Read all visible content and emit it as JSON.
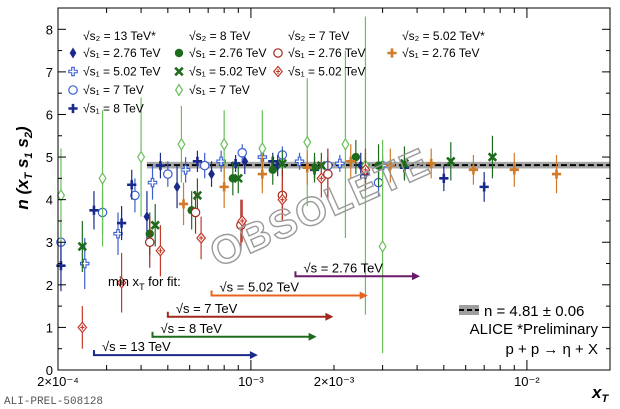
{
  "figure": {
    "ylabel_parts": [
      "n (x",
      "T",
      "  ",
      "s",
      "1",
      " ",
      "s",
      "2",
      ")"
    ],
    "xlabel_parts": [
      "x",
      "T"
    ],
    "watermark": "OBSOLETE",
    "preliminary_id": "ALI-PREL-508128",
    "min_label": "min x",
    "min_label_sub": "T",
    "min_label_tail": " for fit:",
    "fit_text": "n = 4.81 ± 0.06",
    "experiment": "ALICE *Preliminary",
    "process": "p + p → η + X"
  },
  "legend": {
    "columns": [
      {
        "header": "√s₂ = 13 TeV*",
        "color": "#1a2a8a",
        "entries": [
          {
            "label": "√s₁ = 2.76 TeV",
            "marker": "diamond-filled",
            "color": "#1a2a8a"
          },
          {
            "label": "√s₁ = 5.02 TeV",
            "marker": "cross-open",
            "color": "#3a5fd0"
          },
          {
            "label": "√s₁ = 7 TeV",
            "marker": "circle-open",
            "color": "#3a5fd0"
          },
          {
            "label": "√s₁ = 8 TeV",
            "marker": "cross-filled",
            "color": "#1a2a8a"
          }
        ]
      },
      {
        "header": "√s₂ = 8 TeV",
        "color": "#1e6b1e",
        "entries": [
          {
            "label": "√s₁ = 2.76 TeV",
            "marker": "circle-filled",
            "color": "#1e6b1e"
          },
          {
            "label": "√s₁ = 5.02 TeV",
            "marker": "x-filled",
            "color": "#1e6b1e"
          },
          {
            "label": "√s₁ = 7 TeV",
            "marker": "diamond-open",
            "color": "#6abf5a"
          }
        ]
      },
      {
        "header": "√s₂ = 7 TeV",
        "color": "#a0281e",
        "entries": [
          {
            "label": "√s₁ = 2.76 TeV",
            "marker": "circle-open",
            "color": "#a0281e"
          },
          {
            "label": "√s₁ = 5.02 TeV",
            "marker": "diamond-cross",
            "color": "#c43a2a"
          }
        ]
      },
      {
        "header": "√s₂ = 5.02 TeV*",
        "color": "#c8641e",
        "entries": [
          {
            "label": "√s₁ = 2.76 TeV",
            "marker": "cross-filled",
            "color": "#d07a2a"
          }
        ]
      }
    ]
  },
  "chart_data": {
    "type": "scatter",
    "xlabel": "x_T",
    "ylabel": "n (x_T, √s₁, √s₂)",
    "x_scale": "log",
    "xlim": [
      0.0002,
      0.02
    ],
    "ylim": [
      0,
      8.5
    ],
    "x_ticks": [
      {
        "v": 0.0002,
        "label": "2×10⁻⁴"
      },
      {
        "v": 0.001,
        "label": "10⁻³"
      },
      {
        "v": 0.002,
        "label": "2×10⁻³"
      },
      {
        "v": 0.01,
        "label": "10⁻²"
      }
    ],
    "y_ticks": [
      0,
      1,
      2,
      3,
      4,
      5,
      6,
      7,
      8
    ],
    "fit": {
      "value": 4.81,
      "uncertainty": 0.06,
      "x_from": 0.00042,
      "x_to": 0.02
    },
    "min_xT_arrows": [
      {
        "label": "√s = 2.76 TeV",
        "x_from": 0.00145,
        "x_to": 0.0041,
        "y": 2.2,
        "color": "#6a1a6a"
      },
      {
        "label": "√s = 5.02 TeV",
        "x_from": 0.00072,
        "x_to": 0.00265,
        "y": 1.75,
        "color": "#e8641e"
      },
      {
        "label": "√s = 7 TeV",
        "x_from": 0.0005,
        "x_to": 0.00199,
        "y": 1.25,
        "color": "#a0281e"
      },
      {
        "label": "√s = 8 TeV",
        "x_from": 0.00044,
        "x_to": 0.00173,
        "y": 0.78,
        "color": "#1e6b1e"
      },
      {
        "label": "√s = 13 TeV",
        "x_from": 0.00027,
        "x_to": 0.00106,
        "y": 0.35,
        "color": "#1a2a8a"
      }
    ],
    "series": [
      {
        "name": "√s₂=13 TeV*, √s₁=2.76 TeV",
        "marker": "diamond-filled",
        "color": "#1a2a8a",
        "points": [
          [
            0.00042,
            3.6,
            0.6
          ],
          [
            0.00054,
            4.3,
            0.5
          ],
          [
            0.00072,
            4.6,
            0.3
          ],
          [
            0.00095,
            4.9,
            0.3
          ],
          [
            0.00125,
            4.8,
            0.25
          ],
          [
            0.0017,
            4.75,
            0.25
          ],
          [
            0.0025,
            4.8,
            0.3
          ]
        ]
      },
      {
        "name": "√s₂=13 TeV*, √s₁=5.02 TeV",
        "marker": "cross-open",
        "color": "#3a5fd0",
        "points": [
          [
            0.00025,
            2.5,
            0.6
          ],
          [
            0.00033,
            3.2,
            0.5
          ],
          [
            0.00044,
            4.4,
            0.4
          ],
          [
            0.00058,
            4.7,
            0.3
          ],
          [
            0.00078,
            4.9,
            0.25
          ],
          [
            0.0011,
            5.0,
            0.2
          ],
          [
            0.0015,
            4.9,
            0.2
          ],
          [
            0.0021,
            4.85,
            0.2
          ],
          [
            0.003,
            4.8,
            0.25
          ]
        ]
      },
      {
        "name": "√s₂=13 TeV*, √s₁=7 TeV",
        "marker": "circle-open",
        "color": "#3a5fd0",
        "points": [
          [
            0.000205,
            3.0,
            0.5
          ],
          [
            0.00029,
            3.7,
            0.5
          ],
          [
            0.00038,
            4.1,
            0.4
          ],
          [
            0.0005,
            4.6,
            0.3
          ],
          [
            0.00068,
            4.8,
            0.3
          ],
          [
            0.00093,
            5.1,
            0.2
          ],
          [
            0.0013,
            5.05,
            0.2
          ],
          [
            0.0019,
            4.8,
            0.2
          ],
          [
            0.0029,
            4.4,
            0.3
          ]
        ]
      },
      {
        "name": "√s₂=13 TeV*, √s₁=8 TeV",
        "marker": "cross-filled",
        "color": "#1a2a8a",
        "points": [
          [
            0.000205,
            2.45,
            0.6
          ],
          [
            0.00027,
            3.75,
            0.45
          ],
          [
            0.00034,
            3.45,
            0.4
          ],
          [
            0.00037,
            4.35,
            0.35
          ],
          [
            0.00047,
            4.8,
            0.3
          ],
          [
            0.00064,
            4.9,
            0.25
          ],
          [
            0.00088,
            4.85,
            0.2
          ],
          [
            0.0012,
            4.9,
            0.2
          ],
          [
            0.0017,
            4.7,
            0.2
          ],
          [
            0.0026,
            4.6,
            0.25
          ],
          [
            0.0036,
            4.75,
            0.25
          ],
          [
            0.005,
            4.5,
            0.3
          ],
          [
            0.007,
            4.3,
            0.35
          ]
        ]
      },
      {
        "name": "√s₂=8 TeV, √s₁=2.76 TeV",
        "marker": "circle-filled",
        "color": "#1e6b1e",
        "points": [
          [
            0.00043,
            3.2,
            0.5
          ],
          [
            0.00061,
            3.75,
            0.45
          ],
          [
            0.00086,
            4.5,
            0.4
          ],
          [
            0.0012,
            4.7,
            0.35
          ],
          [
            0.0017,
            4.75,
            0.35
          ],
          [
            0.0024,
            5.0,
            0.4
          ],
          [
            0.0029,
            4.8,
            0.5
          ]
        ]
      },
      {
        "name": "√s₂=8 TeV, √s₁=5.02 TeV",
        "marker": "x-filled",
        "color": "#1e6b1e",
        "points": [
          [
            0.000245,
            2.9,
            0.6
          ],
          [
            0.00045,
            3.4,
            0.5
          ],
          [
            0.00064,
            4.1,
            0.4
          ],
          [
            0.0009,
            4.5,
            0.35
          ],
          [
            0.0013,
            4.85,
            0.3
          ],
          [
            0.0018,
            4.8,
            0.3
          ],
          [
            0.0026,
            4.75,
            0.35
          ],
          [
            0.0036,
            4.85,
            0.4
          ],
          [
            0.0053,
            4.9,
            0.45
          ],
          [
            0.0075,
            5.0,
            0.5
          ]
        ]
      },
      {
        "name": "√s₂=8 TeV, √s₁=7 TeV",
        "marker": "diamond-open",
        "color": "#6abf5a",
        "points": [
          [
            0.000205,
            4.1,
            1.1
          ],
          [
            0.00029,
            4.5,
            1.6
          ],
          [
            0.0004,
            5.0,
            1.4
          ],
          [
            0.00056,
            5.3,
            0.9
          ],
          [
            0.0008,
            5.3,
            0.8
          ],
          [
            0.0011,
            5.2,
            0.9
          ],
          [
            0.0016,
            5.35,
            1.5
          ],
          [
            0.0022,
            5.3,
            2.2
          ],
          [
            0.0026,
            4.8,
            3.5
          ],
          [
            0.003,
            2.9,
            2.5
          ]
        ]
      },
      {
        "name": "√s₂=7 TeV, √s₁=2.76 TeV",
        "marker": "circle-open",
        "color": "#a0281e",
        "points": [
          [
            0.00043,
            3.0,
            0.6
          ],
          [
            0.00063,
            3.7,
            0.5
          ],
          [
            0.00092,
            3.4,
            0.6
          ],
          [
            0.0013,
            4.1,
            0.6
          ],
          [
            0.0019,
            4.6,
            0.6
          ]
        ]
      },
      {
        "name": "√s₂=7 TeV, √s₁=5.02 TeV",
        "marker": "diamond-cross",
        "color": "#c43a2a",
        "points": [
          [
            0.000245,
            1.0,
            0.5
          ],
          [
            0.00034,
            2.05,
            0.7
          ],
          [
            0.00047,
            2.8,
            0.6
          ],
          [
            0.00066,
            3.1,
            0.5
          ],
          [
            0.00093,
            3.5,
            0.5
          ],
          [
            0.0013,
            4.0,
            0.5
          ],
          [
            0.0018,
            4.5,
            0.45
          ],
          [
            0.0026,
            4.7,
            0.5
          ]
        ]
      },
      {
        "name": "√s₂=5.02 TeV*, √s₁=2.76 TeV",
        "marker": "cross-filled",
        "color": "#d07a2a",
        "points": [
          [
            0.00057,
            3.9,
            0.5
          ],
          [
            0.0008,
            4.3,
            0.5
          ],
          [
            0.0011,
            4.6,
            0.45
          ],
          [
            0.0016,
            4.75,
            0.4
          ],
          [
            0.0023,
            4.9,
            0.4
          ],
          [
            0.0032,
            4.8,
            0.4
          ],
          [
            0.0045,
            4.85,
            0.35
          ],
          [
            0.0064,
            4.7,
            0.35
          ],
          [
            0.009,
            4.7,
            0.4
          ],
          [
            0.0128,
            4.6,
            0.45
          ]
        ]
      }
    ]
  }
}
